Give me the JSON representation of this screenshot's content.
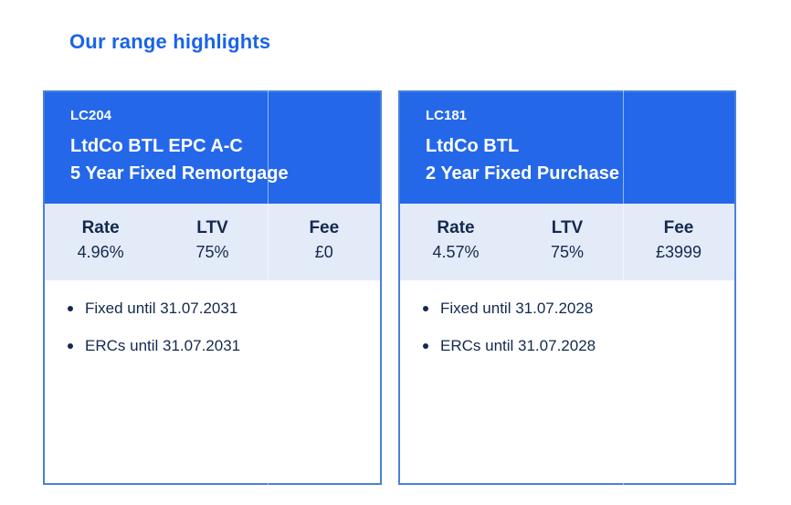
{
  "page": {
    "title": "Our range highlights"
  },
  "colors": {
    "title-blue": "#1A63E8",
    "header-blue": "#2468E9",
    "rate-row-bg": "#E4EBF8",
    "navy": "#13294E",
    "card-border": "#4A80DC"
  },
  "cards": [
    {
      "code": "LC204",
      "product_line1": "LtdCo BTL EPC A-C",
      "product_line2": "5 Year Fixed Remortgage",
      "stats": [
        {
          "label": "Rate",
          "value": "4.96%"
        },
        {
          "label": "LTV",
          "value": "75%"
        },
        {
          "label": "Fee",
          "value": "£0"
        }
      ],
      "bullets": [
        "Fixed until 31.07.2031",
        "ERCs until 31.07.2031"
      ]
    },
    {
      "code": "LC181",
      "product_line1": "LtdCo BTL",
      "product_line2": "2 Year Fixed Purchase",
      "stats": [
        {
          "label": "Rate",
          "value": "4.57%"
        },
        {
          "label": "LTV",
          "value": "75%"
        },
        {
          "label": "Fee",
          "value": "£3999"
        }
      ],
      "bullets": [
        "Fixed until 31.07.2028",
        "ERCs until 31.07.2028"
      ]
    }
  ]
}
